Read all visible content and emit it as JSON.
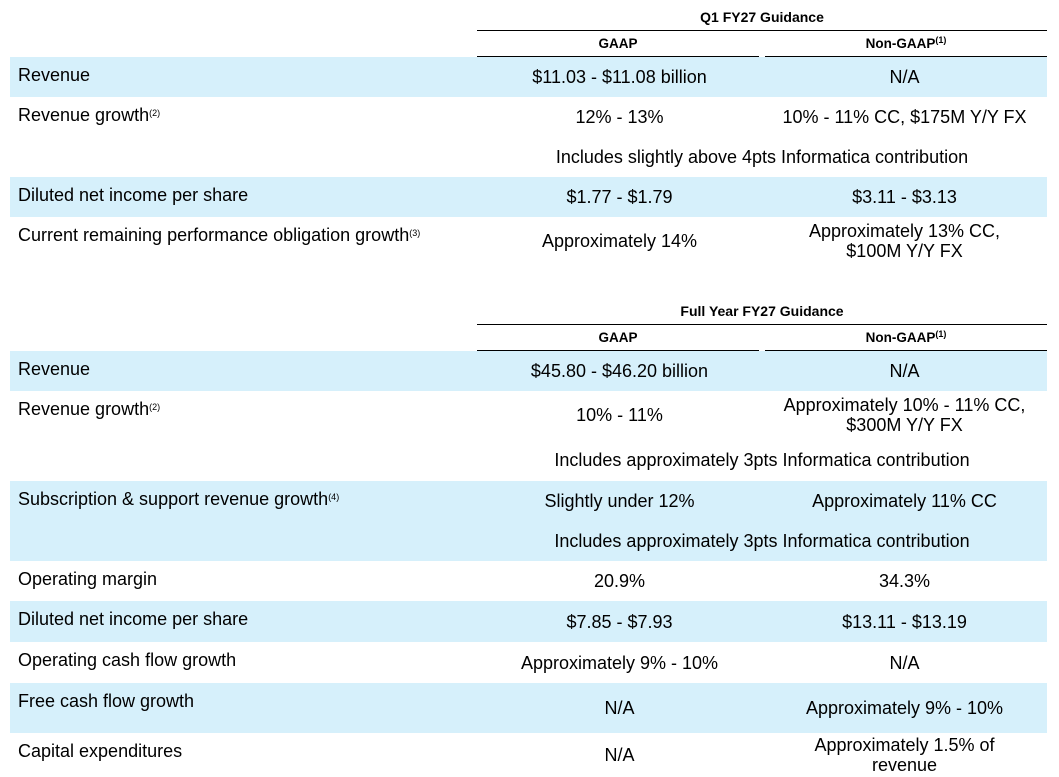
{
  "q1": {
    "heading": "Q1 FY27 Guidance",
    "gaap_header": "GAAP",
    "nongaap_header": "Non-GAAP",
    "nongaap_sup": "(1)",
    "rows": [
      {
        "label": "Revenue",
        "sup": "",
        "gaap": "$11.03 - $11.08 billion",
        "nongaap": "N/A"
      },
      {
        "label": "Revenue growth",
        "sup": "(2)",
        "gaap": "12% - 13%",
        "nongaap": "10% - 11% CC, $175M Y/Y FX",
        "note": "Includes slightly above 4pts Informatica contribution"
      },
      {
        "label": "Diluted net income per share",
        "sup": "",
        "gaap": "$1.77 - $1.79",
        "nongaap": "$3.11 - $3.13"
      },
      {
        "label": "Current remaining performance obligation growth",
        "sup": "(3)",
        "gaap": "Approximately 14%",
        "nongaap": "Approximately 13% CC, $100M Y/Y FX"
      }
    ]
  },
  "fy": {
    "heading": "Full Year FY27 Guidance",
    "gaap_header": "GAAP",
    "nongaap_header": "Non-GAAP",
    "nongaap_sup": "(1)",
    "rows": [
      {
        "label": "Revenue",
        "sup": "",
        "gaap": "$45.80 - $46.20 billion",
        "nongaap": "N/A"
      },
      {
        "label": "Revenue growth",
        "sup": "(2)",
        "gaap": "10% - 11%",
        "nongaap": "Approximately 10% - 11% CC, $300M Y/Y FX",
        "note": "Includes approximately 3pts Informatica contribution"
      },
      {
        "label": "Subscription & support revenue growth",
        "sup": "(4)",
        "gaap": "Slightly under 12%",
        "nongaap": "Approximately 11% CC",
        "note": "Includes approximately 3pts Informatica contribution"
      },
      {
        "label": "Operating margin",
        "sup": "",
        "gaap": "20.9%",
        "nongaap": "34.3%"
      },
      {
        "label": "Diluted net income per share",
        "sup": "",
        "gaap": "$7.85 - $7.93",
        "nongaap": "$13.11 - $13.19"
      },
      {
        "label": "Operating cash flow growth",
        "sup": "",
        "gaap": "Approximately 9% - 10%",
        "nongaap": "N/A"
      },
      {
        "label": "Free cash flow growth",
        "sup": "",
        "gaap": "N/A",
        "nongaap": "Approximately 9% - 10%"
      },
      {
        "label": "Capital expenditures",
        "sup": "",
        "gaap": "N/A",
        "nongaap": "Approximately 1.5% of revenue"
      }
    ]
  },
  "colors": {
    "row_highlight": "#d6f0fb",
    "text": "#000000"
  }
}
